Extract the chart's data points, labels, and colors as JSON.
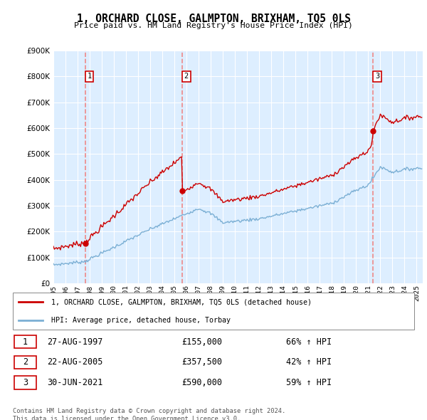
{
  "title": "1, ORCHARD CLOSE, GALMPTON, BRIXHAM, TQ5 0LS",
  "subtitle": "Price paid vs. HM Land Registry's House Price Index (HPI)",
  "sale_labels_bottom": [
    "27-AUG-1997",
    "22-AUG-2005",
    "30-JUN-2021"
  ],
  "sale_prices_str": [
    "£155,000",
    "£357,500",
    "£590,000"
  ],
  "sale_pcts": [
    "66% ↑ HPI",
    "42% ↑ HPI",
    "59% ↑ HPI"
  ],
  "sale_dates_float": [
    1997.646,
    2005.646,
    2021.415
  ],
  "sale_prices": [
    155000,
    357500,
    590000
  ],
  "legend_line1": "1, ORCHARD CLOSE, GALMPTON, BRIXHAM, TQ5 0LS (detached house)",
  "legend_line2": "HPI: Average price, detached house, Torbay",
  "footer1": "Contains HM Land Registry data © Crown copyright and database right 2024.",
  "footer2": "This data is licensed under the Open Government Licence v3.0.",
  "ylim": [
    0,
    900000
  ],
  "yticks": [
    0,
    100000,
    200000,
    300000,
    400000,
    500000,
    600000,
    700000,
    800000,
    900000
  ],
  "red_color": "#cc0000",
  "blue_color": "#7bafd4",
  "dashed_color": "#ee8888",
  "bg_plot": "#ddeeff",
  "bg_fig": "#ffffff"
}
